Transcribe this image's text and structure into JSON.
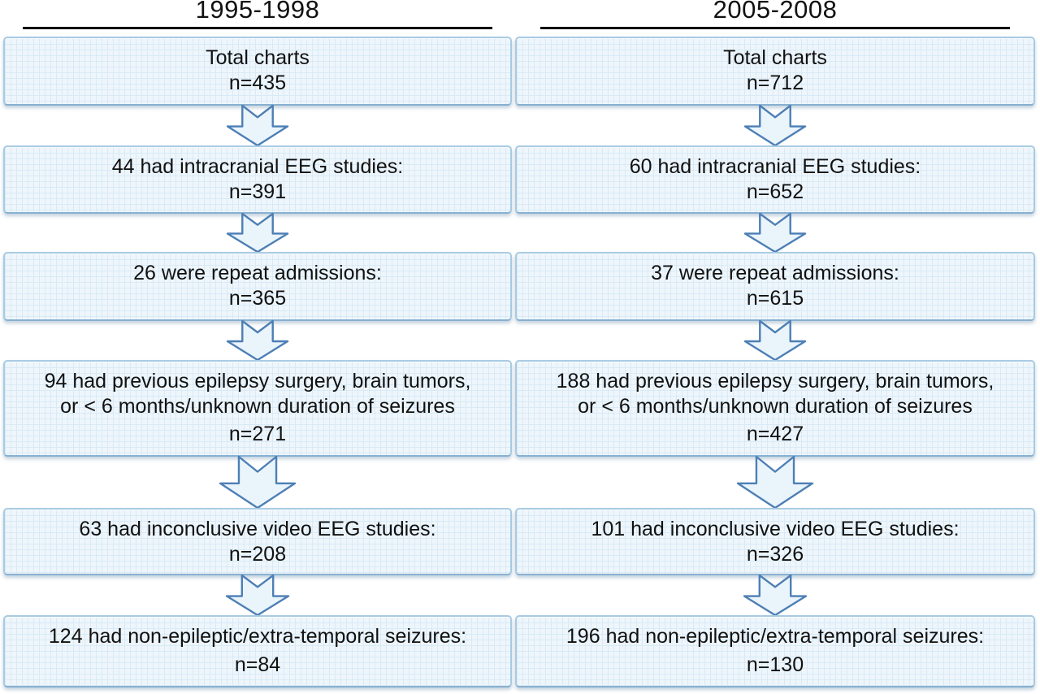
{
  "diagram_title": "Patient chart exclusion flow, epilepsy video EEG cohorts",
  "colors": {
    "box_fill": "#eef6fc",
    "box_grid_line": "#d9eaf6",
    "box_border": "#a9cbe3",
    "box_border_bottom": "#87b0d1",
    "arrow_fill": "#eaf4fb",
    "arrow_outline": "#4d7fb5",
    "header_underline": "#0a0a0a",
    "text": "#111111",
    "background": "#ffffff"
  },
  "columns": [
    {
      "header": "1995-1998",
      "steps": [
        {
          "lines": [
            "Total charts"
          ],
          "n": "n=435"
        },
        {
          "lines": [
            "44 had intracranial EEG studies:"
          ],
          "n": "n=391"
        },
        {
          "lines": [
            "26 were repeat admissions:"
          ],
          "n": "n=365"
        },
        {
          "lines": [
            "94 had previous epilepsy surgery, brain tumors,",
            "or < 6 months/unknown duration of seizures"
          ],
          "n": "n=271"
        },
        {
          "lines": [
            "63 had inconclusive video EEG studies:"
          ],
          "n": "n=208"
        },
        {
          "lines": [
            "124 had non-epileptic/extra-temporal seizures:"
          ],
          "n": "n=84"
        }
      ]
    },
    {
      "header": "2005-2008",
      "steps": [
        {
          "lines": [
            "Total charts"
          ],
          "n": "n=712"
        },
        {
          "lines": [
            "60 had intracranial EEG studies:"
          ],
          "n": "n=652"
        },
        {
          "lines": [
            "37 were repeat admissions:"
          ],
          "n": "n=615"
        },
        {
          "lines": [
            "188 had previous epilepsy surgery, brain tumors,",
            "or < 6 months/unknown duration of seizures"
          ],
          "n": "n=427"
        },
        {
          "lines": [
            "101 had inconclusive video EEG studies:"
          ],
          "n": "n=326"
        },
        {
          "lines": [
            "196 had non-epileptic/extra-temporal seizures:"
          ],
          "n": "n=130"
        }
      ]
    }
  ]
}
